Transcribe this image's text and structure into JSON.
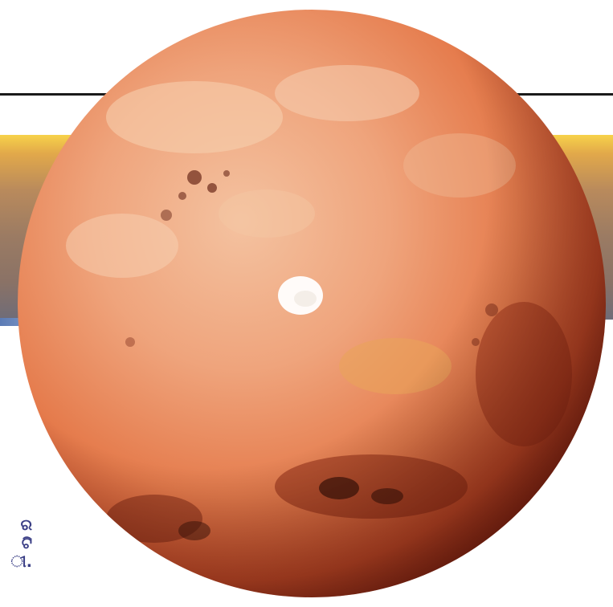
{
  "colors": {
    "rule": "#1a1a1a",
    "band_top": "#f7d24a",
    "band_bottom": "#6f6c78",
    "mars_light": "#f2b894",
    "mars_mid": "#e4784c",
    "mars_dark": "#7a1f10",
    "polar_cap": "#ffffff",
    "text_accent": "#3b3f86"
  },
  "text_fragments": {
    "line1": "ର",
    "line2": "ଟି",
    "line3": "ୀ."
  }
}
